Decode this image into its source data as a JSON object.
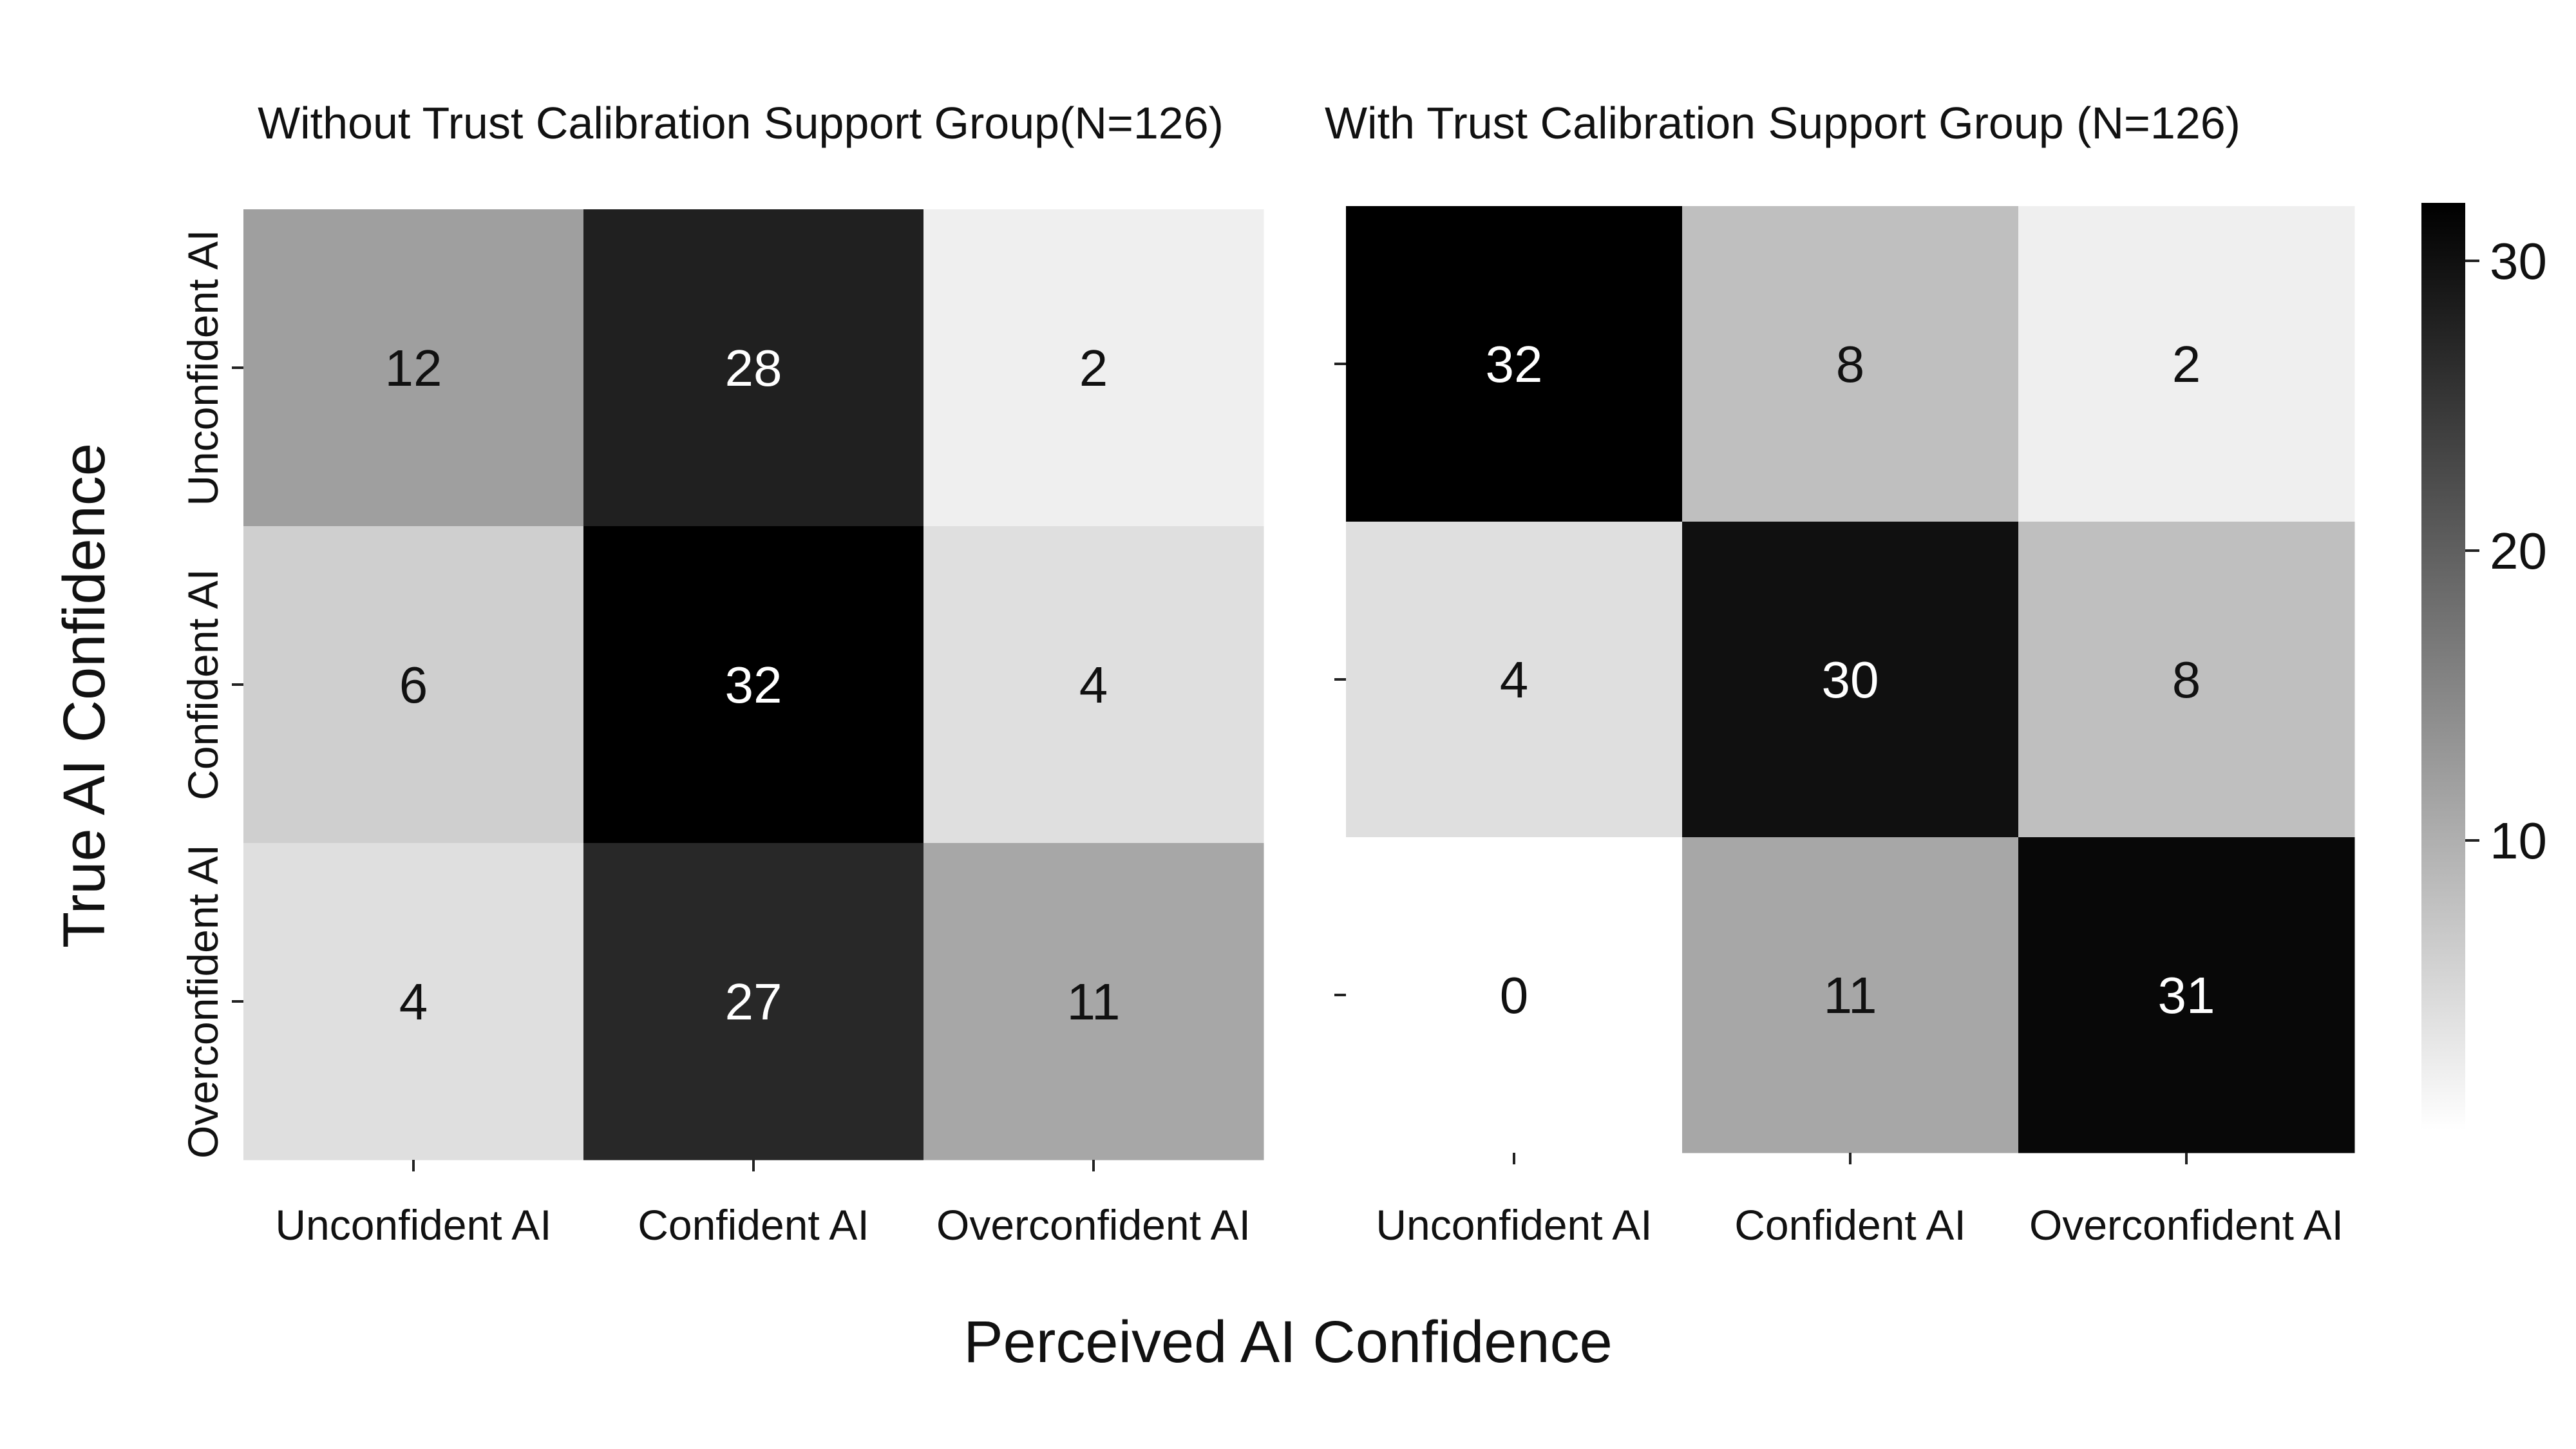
{
  "figure": {
    "xlabel": "Perceived AI Confidence",
    "ylabel": "True AI Confidence"
  },
  "chart_data": [
    {
      "type": "heatmap",
      "title": "Without Trust Calibration Support Group(N=126)",
      "x_categories": [
        "Unconfident AI",
        "Confident AI",
        "Overconfident AI"
      ],
      "y_categories": [
        "Unconfident AI",
        "Confident AI",
        "Overconfident AI"
      ],
      "values": [
        [
          12,
          28,
          2
        ],
        [
          6,
          32,
          4
        ],
        [
          4,
          27,
          11
        ]
      ],
      "xlabel": "Perceived AI Confidence",
      "ylabel": "True AI Confidence"
    },
    {
      "type": "heatmap",
      "title": "With Trust Calibration Support Group (N=126)",
      "x_categories": [
        "Unconfident AI",
        "Confident AI",
        "Overconfident AI"
      ],
      "y_categories": [
        "Unconfident AI",
        "Confident AI",
        "Overconfident AI"
      ],
      "values": [
        [
          32,
          8,
          2
        ],
        [
          4,
          30,
          8
        ],
        [
          0,
          11,
          31
        ]
      ],
      "xlabel": "Perceived AI Confidence",
      "ylabel": "True AI Confidence"
    }
  ],
  "colorbar": {
    "range": [
      0,
      32
    ],
    "ticks": [
      10,
      20,
      30
    ],
    "colormap": "grays (white = low, black = high)",
    "color_low": "#ffffff",
    "color_high": "#000000"
  }
}
